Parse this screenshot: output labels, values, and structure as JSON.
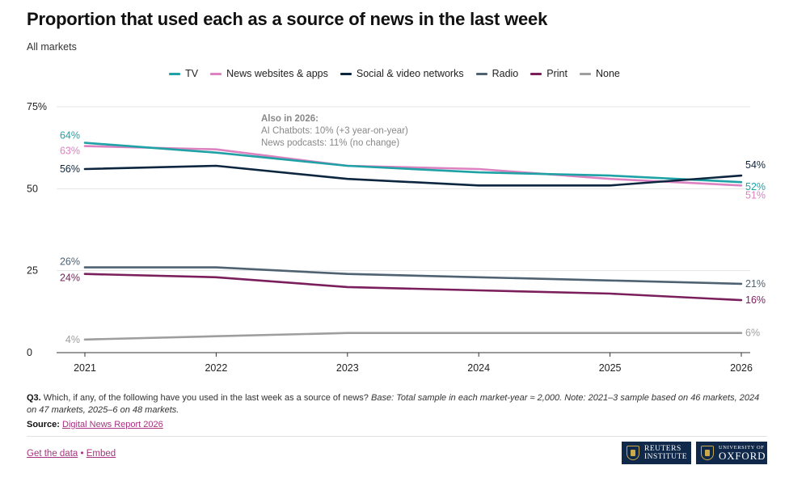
{
  "header": {
    "title": "Proportion that used each as a source of news in the last week",
    "subtitle": "All markets"
  },
  "colors": {
    "tv": "#1fa2a6",
    "news_websites": "#dc82c1",
    "social": "#0d2640",
    "radio": "#4f6272",
    "print": "#7a1f5c",
    "none": "#9e9e9e",
    "axis": "#333333",
    "grid": "#e6e6e6",
    "accent_link": "#a8327f"
  },
  "chart_data": {
    "type": "line",
    "x": [
      "2021",
      "2022",
      "2023",
      "2024",
      "2025",
      "2026"
    ],
    "ylim": [
      0,
      75
    ],
    "y_ticks": [
      "0",
      "25",
      "50",
      "75%"
    ],
    "grid": "horizontal",
    "legend_position": "top-center",
    "series": [
      {
        "key": "tv",
        "name": "TV",
        "values": [
          64,
          61,
          57,
          55,
          54,
          52
        ],
        "start_label": "64%",
        "end_label": "52%"
      },
      {
        "key": "news_websites",
        "name": "News websites & apps",
        "values": [
          63,
          62,
          57,
          56,
          53,
          51
        ],
        "start_label": "63%",
        "end_label": "51%"
      },
      {
        "key": "social",
        "name": "Social & video networks",
        "values": [
          56,
          57,
          53,
          51,
          51,
          54
        ],
        "start_label": "56%",
        "end_label": "54%"
      },
      {
        "key": "radio",
        "name": "Radio",
        "values": [
          26,
          26,
          24,
          23,
          22,
          21
        ],
        "start_label": "26%",
        "end_label": "21%"
      },
      {
        "key": "print",
        "name": "Print",
        "values": [
          24,
          23,
          20,
          19,
          18,
          16
        ],
        "start_label": "24%",
        "end_label": "16%"
      },
      {
        "key": "none",
        "name": "None",
        "values": [
          4,
          5,
          6,
          6,
          6,
          6
        ],
        "start_label": "4%",
        "end_label": "6%"
      }
    ],
    "annotation": {
      "heading": "Also in 2026:",
      "lines": [
        "AI Chatbots: 10% (+3 year-on-year)",
        "News podcasts: 11% (no change)"
      ]
    }
  },
  "footer": {
    "question_label": "Q3.",
    "question_text": "Which, if any, of the following have you used in the last week as a source of news?",
    "base_label": "Base:",
    "base_text": "Total sample in each market-year ≈ 2,000.",
    "note_label": "Note:",
    "note_text": "2021–3 sample based on 46 markets, 2024 on 47 markets, 2025–6 on 48 markets.",
    "source_label": "Source:",
    "source_link": "Digital News Report 2026",
    "get_data": "Get the data",
    "separator": "•",
    "embed": "Embed"
  },
  "logos": {
    "reuters_line1": "Reuters",
    "reuters_line2": "Institute",
    "oxford_small": "University of",
    "oxford_big": "OXFORD"
  }
}
